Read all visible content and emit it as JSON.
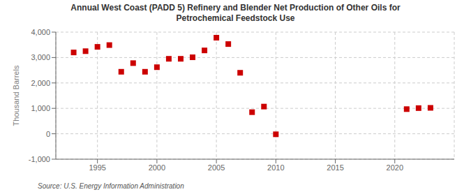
{
  "chart_data": {
    "type": "scatter",
    "title": "Annual West Coast (PADD 5) Refinery and Blender Net Production of Other Oils for\nPetrochemical Feedstock Use",
    "ylabel": "Thousand Barrels",
    "annotations": [
      "Source: U.S. Energy Information Administration"
    ],
    "x": [
      1993,
      1994,
      1995,
      1996,
      1997,
      1998,
      1999,
      2000,
      2001,
      2002,
      2003,
      2004,
      2005,
      2006,
      2007,
      2008,
      2009,
      2010,
      2021,
      2022,
      2023
    ],
    "values": [
      3200,
      3250,
      3420,
      3490,
      2440,
      2780,
      2440,
      2620,
      2950,
      2950,
      3010,
      3280,
      3780,
      3530,
      2400,
      850,
      1070,
      -20,
      970,
      1010,
      1020
    ],
    "color": "#cc0000",
    "marker": "square",
    "xlim": [
      1991.5,
      2025
    ],
    "xticks": [
      1995,
      2000,
      2005,
      2010,
      2015,
      2020
    ],
    "ylim": [
      -1000,
      4000
    ],
    "yticks": [
      {
        "value": -1000,
        "label": "-1,000"
      },
      0,
      {
        "value": 1000,
        "label": "1,000"
      },
      {
        "value": 2000,
        "label": "2,000"
      },
      {
        "value": 3000,
        "label": "3,000"
      },
      {
        "value": 4000,
        "label": "4,000"
      }
    ],
    "grid": true
  }
}
